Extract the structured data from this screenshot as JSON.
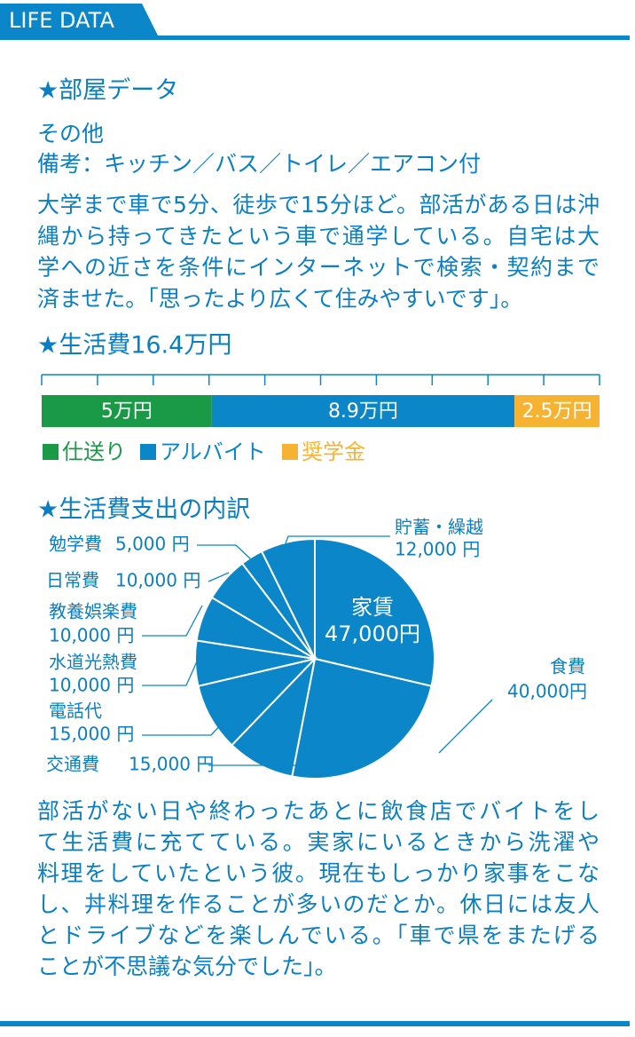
{
  "header": {
    "title": "LIFE DATA"
  },
  "room": {
    "title": "★部屋データ",
    "lines": [
      "その他",
      "備考：キッチン／バス／トイレ／エアコン付"
    ],
    "paragraph": [
      "大学まで車で5分、徒歩で15分ほど。部活がある日は沖",
      "縄から持ってきたという車で通学している。自宅は大",
      "学への近さを条件にインターネットで検索・契約まで",
      "済ませた。「思ったより広くて住みやすいです」。"
    ]
  },
  "chart_data": [
    {
      "type": "bar",
      "stacked": true,
      "orientation": "horizontal",
      "title": "★生活費16.4万円",
      "series": [
        {
          "name": "仕送り",
          "color": "#1a9a47",
          "values": [
            5
          ],
          "value_labels": [
            "5万円"
          ]
        },
        {
          "name": "アルバイト",
          "color": "#0b86c8",
          "values": [
            8.9
          ],
          "value_labels": [
            "8.9万円"
          ]
        },
        {
          "name": "奨学金",
          "color": "#f6b332",
          "values": [
            2.5
          ],
          "value_labels": [
            "2.5万円"
          ]
        }
      ],
      "xlim": [
        0,
        16.4
      ],
      "xticks": [
        0,
        1.64,
        3.28,
        4.92,
        6.56,
        8.2,
        9.84,
        11.48,
        13.12,
        14.76,
        16.4
      ]
    },
    {
      "type": "pie",
      "title": "★生活費支出の内訳",
      "categories": [
        "家賃",
        "食費",
        "交通費",
        "電話代",
        "水道光熱費",
        "教養娯楽費",
        "日常費",
        "勉学費",
        "貯蓄・繰越"
      ],
      "values": [
        47000,
        40000,
        15000,
        15000,
        10000,
        10000,
        10000,
        5000,
        12000
      ],
      "value_labels": [
        "47,000円",
        "40,000円",
        "15,000 円",
        "15,000 円",
        "10,000 円",
        "10,000 円",
        "10,000 円",
        "5,000 円",
        "12,000 円"
      ],
      "color": "#0b86c8"
    }
  ],
  "closing": {
    "paragraph": [
      "部活がない日や終わったあとに飲食店でバイトをし",
      "て生活費に充てている。実家にいるときから洗濯や",
      "料理をしていたという彼。現在もしっかり家事をこな",
      "し、丼料理を作ることが多いのだとか。休日には友人",
      "とドライブなどを楽しんでいる。「車で県をまたげる",
      "ことが不思議な気分でした」。"
    ]
  }
}
